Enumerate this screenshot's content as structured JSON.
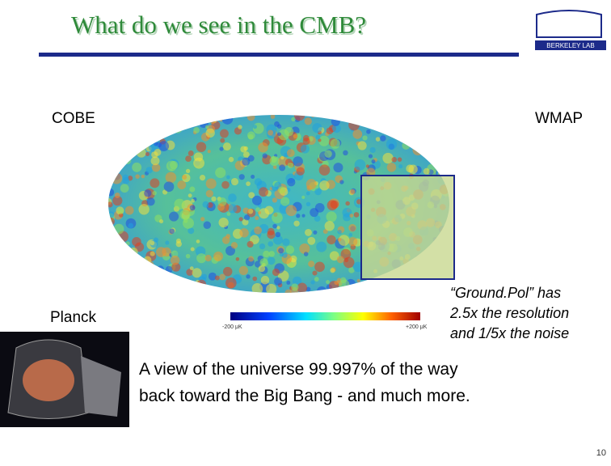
{
  "header": {
    "title": "What do we see in the CMB?"
  },
  "logo": {
    "text": "BERKELEY LAB"
  },
  "labels": {
    "cobe": "COBE",
    "wmap": "WMAP",
    "planck": "Planck"
  },
  "colorbar": {
    "min_label": "-200 μK",
    "max_label": "+200 μK"
  },
  "callout": {
    "lines": [
      "“Ground.Pol” has",
      "2.5x the resolution",
      "and 1/5x the noise"
    ]
  },
  "caption": {
    "lines": [
      "A view of the universe 99.997% of the way",
      "back toward the Big Bang - and much more."
    ]
  },
  "page_number": "10"
}
